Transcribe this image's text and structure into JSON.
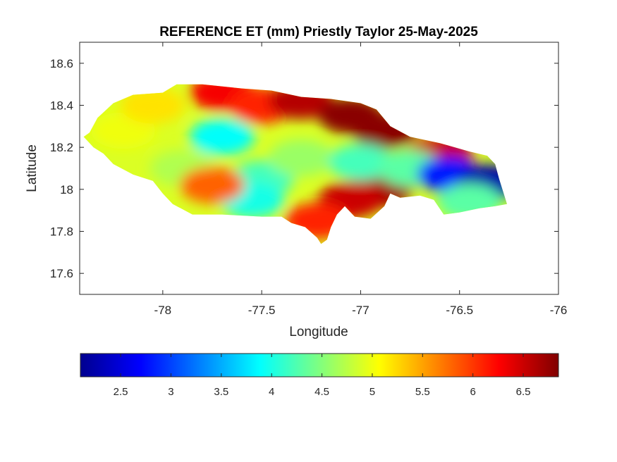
{
  "chart_data": {
    "type": "heatmap",
    "title": "REFERENCE ET (mm) Priestly Taylor 25-May-2025",
    "xlabel": "Longitude",
    "ylabel": "Latitude",
    "xlim": [
      -78.42,
      -76.0
    ],
    "ylim": [
      17.5,
      18.7
    ],
    "xticks": [
      -78,
      -77.5,
      -77,
      -76.5,
      -76
    ],
    "xtick_labels": [
      "-78",
      "-77.5",
      "-77",
      "-76.5",
      "-76"
    ],
    "yticks": [
      17.6,
      17.8,
      18,
      18.2,
      18.4,
      18.6
    ],
    "ytick_labels": [
      "17.6",
      "17.8",
      "18",
      "18.2",
      "18.4",
      "18.6"
    ],
    "grid": false,
    "colormap": "jet",
    "clim": [
      2.1,
      6.85
    ],
    "colorbar": {
      "orientation": "horizontal",
      "location": "bottom",
      "ticks": [
        2.5,
        3,
        3.5,
        4,
        4.5,
        5,
        5.5,
        6,
        6.5
      ],
      "tick_labels": [
        "2.5",
        "3",
        "3.5",
        "4",
        "4.5",
        "5",
        "5.5",
        "6",
        "6.5"
      ]
    },
    "region_outline": [
      [
        -78.37,
        18.27
      ],
      [
        -78.33,
        18.34
      ],
      [
        -78.25,
        18.41
      ],
      [
        -78.15,
        18.45
      ],
      [
        -78.0,
        18.46
      ],
      [
        -77.93,
        18.5
      ],
      [
        -77.8,
        18.5
      ],
      [
        -77.6,
        18.48
      ],
      [
        -77.45,
        18.47
      ],
      [
        -77.3,
        18.44
      ],
      [
        -77.15,
        18.43
      ],
      [
        -77.0,
        18.41
      ],
      [
        -76.92,
        18.38
      ],
      [
        -76.85,
        18.3
      ],
      [
        -76.75,
        18.25
      ],
      [
        -76.6,
        18.22
      ],
      [
        -76.45,
        18.18
      ],
      [
        -76.36,
        18.16
      ],
      [
        -76.32,
        18.12
      ],
      [
        -76.3,
        18.05
      ],
      [
        -76.28,
        17.99
      ],
      [
        -76.26,
        17.93
      ],
      [
        -76.32,
        17.92
      ],
      [
        -76.4,
        17.91
      ],
      [
        -76.5,
        17.89
      ],
      [
        -76.58,
        17.88
      ],
      [
        -76.63,
        17.95
      ],
      [
        -76.7,
        17.97
      ],
      [
        -76.8,
        17.96
      ],
      [
        -76.85,
        17.98
      ],
      [
        -76.88,
        17.92
      ],
      [
        -76.95,
        17.86
      ],
      [
        -77.03,
        17.87
      ],
      [
        -77.08,
        17.92
      ],
      [
        -77.12,
        17.88
      ],
      [
        -77.15,
        17.82
      ],
      [
        -77.17,
        17.76
      ],
      [
        -77.2,
        17.74
      ],
      [
        -77.22,
        17.77
      ],
      [
        -77.28,
        17.82
      ],
      [
        -77.35,
        17.84
      ],
      [
        -77.4,
        17.87
      ],
      [
        -77.5,
        17.87
      ],
      [
        -77.7,
        17.88
      ],
      [
        -77.85,
        17.88
      ],
      [
        -77.95,
        17.93
      ],
      [
        -78.0,
        17.98
      ],
      [
        -78.05,
        18.04
      ],
      [
        -78.15,
        18.07
      ],
      [
        -78.25,
        18.12
      ],
      [
        -78.3,
        18.17
      ],
      [
        -78.35,
        18.2
      ],
      [
        -78.4,
        18.25
      ]
    ],
    "field_hotspots": [
      {
        "lon": -78.2,
        "lat": 18.28,
        "value": 5.0
      },
      {
        "lon": -77.9,
        "lat": 18.1,
        "value": 4.7
      },
      {
        "lon": -77.7,
        "lat": 18.25,
        "value": 3.9
      },
      {
        "lon": -77.5,
        "lat": 18.05,
        "value": 4.2
      },
      {
        "lon": -77.3,
        "lat": 18.15,
        "value": 4.6
      },
      {
        "lon": -77.55,
        "lat": 17.95,
        "value": 4.0
      },
      {
        "lon": -77.7,
        "lat": 18.46,
        "value": 6.3
      },
      {
        "lon": -77.5,
        "lat": 18.4,
        "value": 6.1
      },
      {
        "lon": -77.3,
        "lat": 18.42,
        "value": 6.6
      },
      {
        "lon": -77.05,
        "lat": 18.35,
        "value": 6.8
      },
      {
        "lon": -76.88,
        "lat": 18.28,
        "value": 6.8
      },
      {
        "lon": -76.6,
        "lat": 18.17,
        "value": 6.5
      },
      {
        "lon": -76.9,
        "lat": 18.0,
        "value": 6.7
      },
      {
        "lon": -77.05,
        "lat": 17.95,
        "value": 6.5
      },
      {
        "lon": -77.22,
        "lat": 17.85,
        "value": 6.1
      },
      {
        "lon": -77.75,
        "lat": 18.02,
        "value": 5.8
      },
      {
        "lon": -77.0,
        "lat": 18.13,
        "value": 4.2
      },
      {
        "lon": -76.75,
        "lat": 18.1,
        "value": 4.3
      },
      {
        "lon": -76.55,
        "lat": 18.07,
        "value": 2.8
      },
      {
        "lon": -76.35,
        "lat": 18.03,
        "value": 2.3
      },
      {
        "lon": -76.45,
        "lat": 17.94,
        "value": 4.3
      },
      {
        "lon": -78.05,
        "lat": 18.4,
        "value": 5.2
      }
    ],
    "field_background": 4.9
  }
}
